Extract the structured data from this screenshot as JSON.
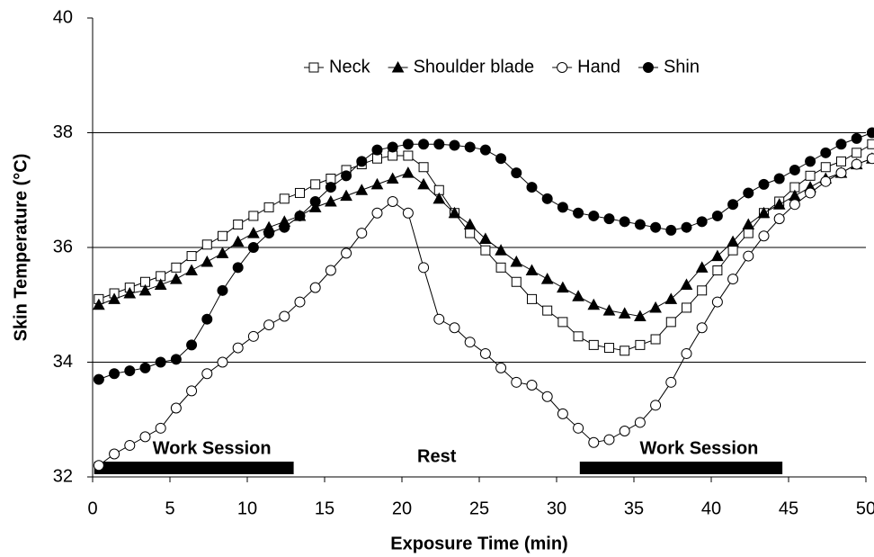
{
  "chart_data": {
    "type": "line",
    "xlabel": "Exposure Time (min)",
    "ylabel": "Skin Temperature (°C)",
    "x": [
      0.4,
      1.4,
      2.4,
      3.4,
      4.4,
      5.4,
      6.4,
      7.4,
      8.4,
      9.4,
      10.4,
      11.4,
      12.4,
      13.4,
      14.4,
      15.4,
      16.4,
      17.4,
      18.4,
      19.4,
      20.4,
      21.4,
      22.4,
      23.4,
      24.4,
      25.4,
      26.4,
      27.4,
      28.4,
      29.4,
      30.4,
      31.4,
      32.4,
      33.4,
      34.4,
      35.4,
      36.4,
      37.4,
      38.4,
      39.4,
      40.4,
      41.4,
      42.4,
      43.4,
      44.4,
      45.4,
      46.4,
      47.4,
      48.4,
      49.4,
      50.4
    ],
    "series": [
      {
        "name": "Neck",
        "color": "#000000",
        "marker": "square",
        "filled": false,
        "values": [
          35.1,
          35.2,
          35.3,
          35.4,
          35.5,
          35.65,
          35.85,
          36.05,
          36.2,
          36.4,
          36.55,
          36.7,
          36.85,
          36.95,
          37.1,
          37.2,
          37.35,
          37.45,
          37.55,
          37.6,
          37.6,
          37.4,
          37.0,
          36.6,
          36.25,
          35.95,
          35.65,
          35.4,
          35.1,
          34.9,
          34.7,
          34.45,
          34.3,
          34.25,
          34.2,
          34.3,
          34.4,
          34.7,
          34.95,
          35.25,
          35.6,
          35.95,
          36.25,
          36.6,
          36.8,
          37.05,
          37.25,
          37.4,
          37.5,
          37.65,
          37.8
        ]
      },
      {
        "name": "Shoulder blade",
        "color": "#000000",
        "marker": "triangle",
        "filled": true,
        "values": [
          35.0,
          35.1,
          35.2,
          35.25,
          35.35,
          35.45,
          35.6,
          35.75,
          35.9,
          36.1,
          36.25,
          36.35,
          36.45,
          36.55,
          36.7,
          36.8,
          36.9,
          37.0,
          37.1,
          37.2,
          37.3,
          37.1,
          36.85,
          36.6,
          36.4,
          36.15,
          35.95,
          35.75,
          35.6,
          35.45,
          35.3,
          35.15,
          35.0,
          34.9,
          34.85,
          34.8,
          34.95,
          35.1,
          35.35,
          35.65,
          35.85,
          36.1,
          36.4,
          36.6,
          36.75,
          36.9,
          37.05,
          37.2,
          37.3,
          37.45,
          37.55
        ]
      },
      {
        "name": "Hand",
        "color": "#000000",
        "marker": "circle",
        "filled": false,
        "values": [
          32.2,
          32.4,
          32.55,
          32.7,
          32.85,
          33.2,
          33.5,
          33.8,
          34.0,
          34.25,
          34.45,
          34.65,
          34.8,
          35.05,
          35.3,
          35.6,
          35.9,
          36.25,
          36.6,
          36.8,
          36.6,
          35.65,
          34.75,
          34.6,
          34.35,
          34.15,
          33.9,
          33.65,
          33.6,
          33.4,
          33.1,
          32.85,
          32.6,
          32.65,
          32.8,
          32.95,
          33.25,
          33.65,
          34.15,
          34.6,
          35.05,
          35.45,
          35.85,
          36.2,
          36.5,
          36.75,
          36.95,
          37.15,
          37.3,
          37.45,
          37.55
        ]
      },
      {
        "name": "Shin",
        "color": "#000000",
        "marker": "circle",
        "filled": true,
        "values": [
          33.7,
          33.8,
          33.85,
          33.9,
          34.0,
          34.05,
          34.3,
          34.75,
          35.25,
          35.65,
          36.0,
          36.25,
          36.35,
          36.55,
          36.8,
          37.05,
          37.25,
          37.5,
          37.7,
          37.75,
          37.8,
          37.8,
          37.8,
          37.78,
          37.75,
          37.7,
          37.55,
          37.3,
          37.05,
          36.85,
          36.7,
          36.6,
          36.55,
          36.5,
          36.45,
          36.4,
          36.35,
          36.3,
          36.35,
          36.45,
          36.55,
          36.75,
          36.95,
          37.1,
          37.2,
          37.35,
          37.5,
          37.65,
          37.8,
          37.9,
          38.0
        ]
      }
    ],
    "xlim": [
      0,
      50
    ],
    "xticks": [
      0,
      5,
      10,
      15,
      20,
      25,
      30,
      35,
      40,
      45,
      50
    ],
    "ylim": [
      32,
      40
    ],
    "yticks": [
      32,
      34,
      36,
      38,
      40
    ],
    "grid": true,
    "legend": "top",
    "sessions": [
      {
        "text": "Work Session",
        "start": 0.1,
        "end": 13
      },
      {
        "text": "Work Session",
        "start": 31.5,
        "end": 44.6
      }
    ],
    "rest_label": "Rest"
  }
}
